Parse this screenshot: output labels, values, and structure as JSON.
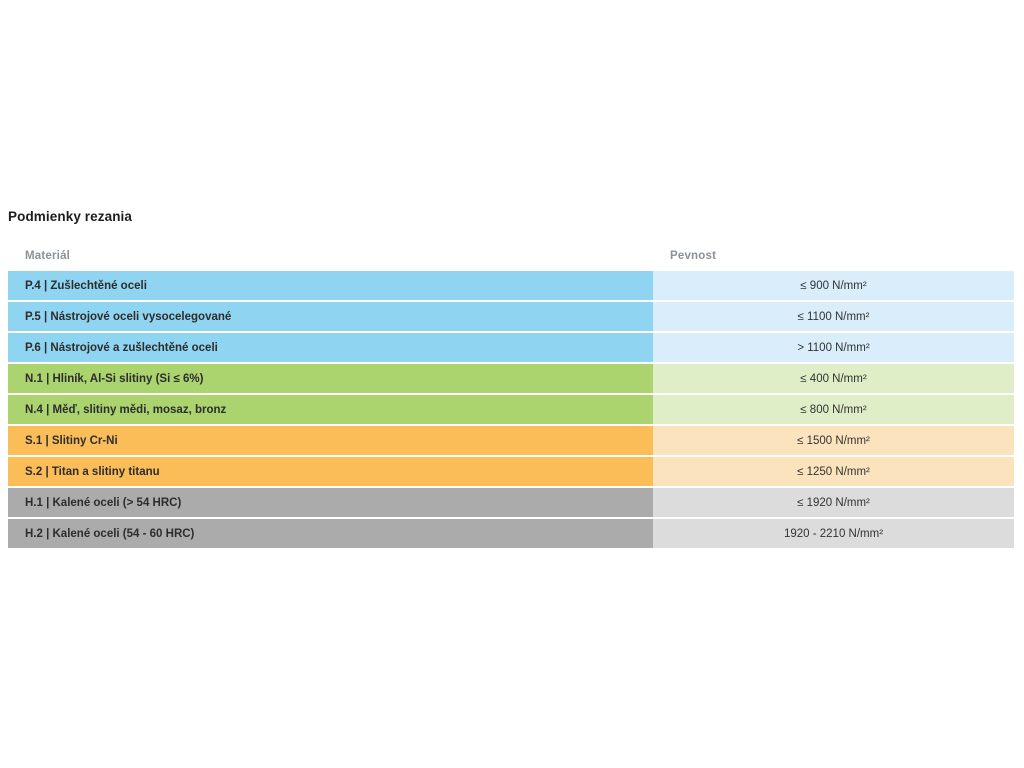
{
  "page": {
    "title": "Podmienky rezania"
  },
  "table": {
    "headers": {
      "material": "Materiál",
      "strength": "Pevnost"
    },
    "rows": [
      {
        "material": "P.4 | Zušlechtěné oceli",
        "strength": "≤ 900 N/mm²",
        "group": "blue"
      },
      {
        "material": "P.5 | Nástrojové oceli vysocelegované",
        "strength": "≤ 1100 N/mm²",
        "group": "blue"
      },
      {
        "material": "P.6 | Nástrojové a zušlechtěné oceli",
        "strength": "> 1100 N/mm²",
        "group": "blue"
      },
      {
        "material": "N.1 | Hliník, Al-Si slitiny (Si ≤ 6%)",
        "strength": "≤ 400 N/mm²",
        "group": "green"
      },
      {
        "material": "N.4 | Měď, slitiny mědi, mosaz, bronz",
        "strength": "≤ 800 N/mm²",
        "group": "green"
      },
      {
        "material": "S.1 | Slitiny Cr-Ni",
        "strength": "≤ 1500 N/mm²",
        "group": "orange"
      },
      {
        "material": "S.2 | Titan a slitiny titanu",
        "strength": "≤ 1250 N/mm²",
        "group": "orange"
      },
      {
        "material": "H.1 | Kalené oceli (> 54 HRC)",
        "strength": "≤ 1920 N/mm²",
        "group": "gray"
      },
      {
        "material": "H.2 | Kalené oceli (54 - 60 HRC)",
        "strength": "1920 - 2210 N/mm²",
        "group": "gray"
      }
    ]
  },
  "colors": {
    "blue_left": "#8fd4f0",
    "blue_right": "#d9eefa",
    "green_left": "#abd36e",
    "green_right": "#e0eec7",
    "orange_left": "#fbbd58",
    "orange_right": "#fbe3bd",
    "gray_left": "#ababab",
    "gray_right": "#dcdcdc"
  }
}
